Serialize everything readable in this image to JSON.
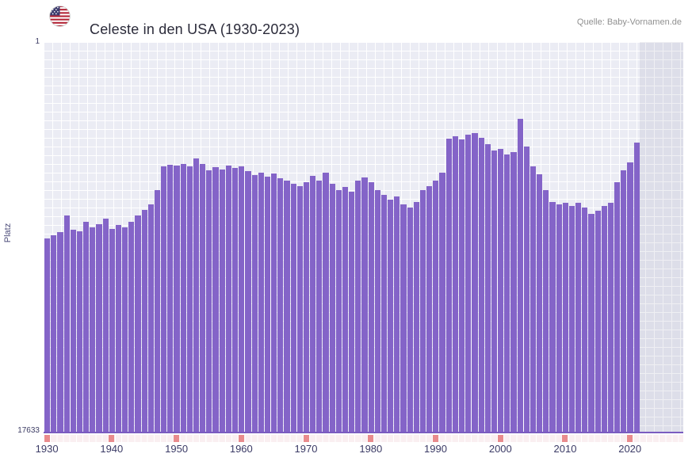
{
  "header": {
    "title": "Celeste in den USA (1930-2023)",
    "source": "Quelle: Baby-Vornamen.de"
  },
  "chart_data": {
    "type": "bar",
    "title": "Celeste in den USA (1930-2023)",
    "xlabel": "",
    "ylabel": "Platz",
    "y_axis": {
      "top_label": "1",
      "bottom_label": "17633",
      "min": 1,
      "max": 17633,
      "inverted": true,
      "note": "rank scale, 1 = best at top"
    },
    "x_ticks": [
      1930,
      1940,
      1950,
      1960,
      1970,
      1980,
      1990,
      2000,
      2010,
      2020
    ],
    "years": [
      1930,
      1931,
      1932,
      1933,
      1934,
      1935,
      1936,
      1937,
      1938,
      1939,
      1940,
      1941,
      1942,
      1943,
      1944,
      1945,
      1946,
      1947,
      1948,
      1949,
      1950,
      1951,
      1952,
      1953,
      1954,
      1955,
      1956,
      1957,
      1958,
      1959,
      1960,
      1961,
      1962,
      1963,
      1964,
      1965,
      1966,
      1967,
      1968,
      1969,
      1970,
      1971,
      1972,
      1973,
      1974,
      1975,
      1976,
      1977,
      1978,
      1979,
      1980,
      1981,
      1982,
      1983,
      1984,
      1985,
      1986,
      1987,
      1988,
      1989,
      1990,
      1991,
      1992,
      1993,
      1994,
      1995,
      1996,
      1997,
      1998,
      1999,
      2000,
      2001,
      2002,
      2003,
      2004,
      2005,
      2006,
      2007,
      2008,
      2009,
      2010,
      2011,
      2012,
      2013,
      2014,
      2015,
      2016,
      2017,
      2018,
      2019,
      2020,
      2021
    ],
    "ranks": [
      8900,
      8750,
      8600,
      7850,
      8500,
      8550,
      8150,
      8400,
      8250,
      8000,
      8450,
      8280,
      8390,
      8140,
      7850,
      7600,
      7350,
      6700,
      5630,
      5560,
      5590,
      5520,
      5630,
      5270,
      5520,
      5810,
      5660,
      5770,
      5590,
      5700,
      5630,
      5840,
      6020,
      5910,
      6090,
      5950,
      6170,
      6270,
      6420,
      6520,
      6340,
      6060,
      6270,
      5910,
      6420,
      6700,
      6560,
      6770,
      6270,
      6130,
      6340,
      6700,
      6920,
      7130,
      6990,
      7350,
      7490,
      7240,
      6700,
      6520,
      6270,
      5910,
      4370,
      4270,
      4410,
      4190,
      4120,
      4340,
      4620,
      4910,
      4840,
      5090,
      4980,
      3480,
      4730,
      5630,
      5990,
      6700,
      7240,
      7350,
      7280,
      7420,
      7280,
      7490,
      7780,
      7640,
      7420,
      7280,
      6340,
      5810,
      5450,
      4550
    ],
    "bar_color": "#8464c8",
    "plot_background": "#ebecf4",
    "grid_color": "#ffffff",
    "axis_line_color": "#7a5cc0",
    "decade_tick_color": "#e98b8d",
    "grid": true,
    "legend": "none"
  }
}
